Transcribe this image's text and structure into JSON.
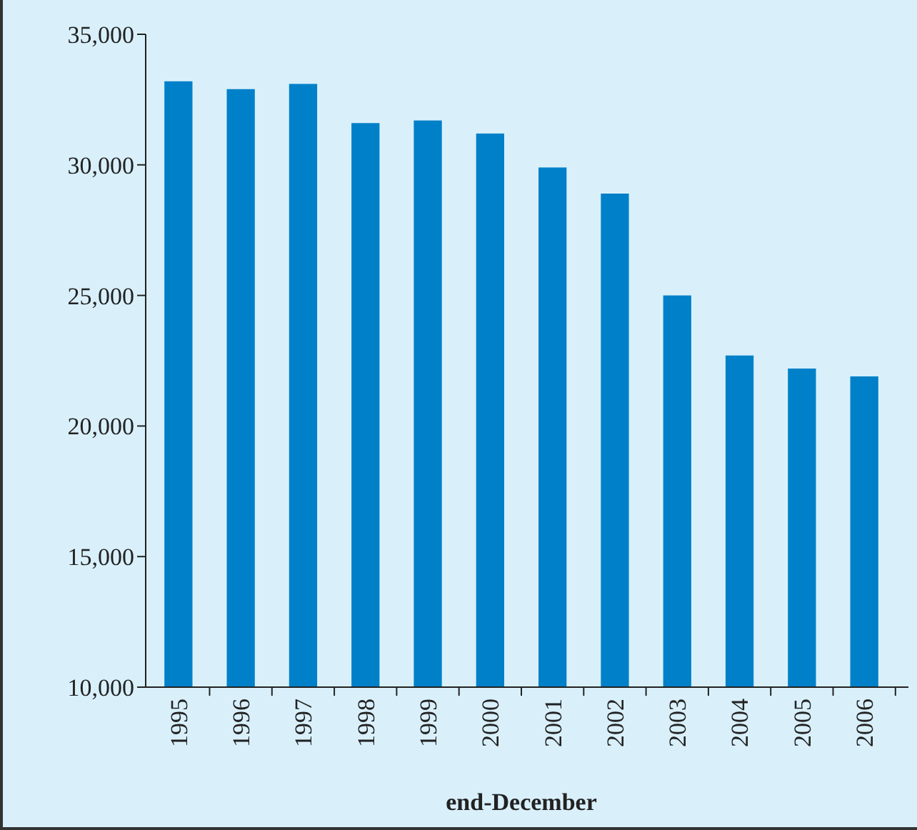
{
  "chart_data": {
    "type": "bar",
    "xlabel": "end-December",
    "categories": [
      "1995",
      "1996",
      "1997",
      "1998",
      "1999",
      "2000",
      "2001",
      "2002",
      "2003",
      "2004",
      "2005",
      "2006"
    ],
    "values": [
      33200,
      32900,
      33100,
      31600,
      31700,
      31200,
      29900,
      28900,
      25000,
      22700,
      22200,
      21900
    ],
    "color": "#0080c8",
    "ylim": [
      10000,
      35000
    ],
    "yticks": [
      {
        "value": 10000,
        "label": "10,000"
      },
      {
        "value": 15000,
        "label": "15,000"
      },
      {
        "value": 20000,
        "label": "20,000"
      },
      {
        "value": 25000,
        "label": "25,000"
      },
      {
        "value": 30000,
        "label": "30,000"
      },
      {
        "value": 35000,
        "label": "35,000"
      }
    ],
    "grid": false
  }
}
